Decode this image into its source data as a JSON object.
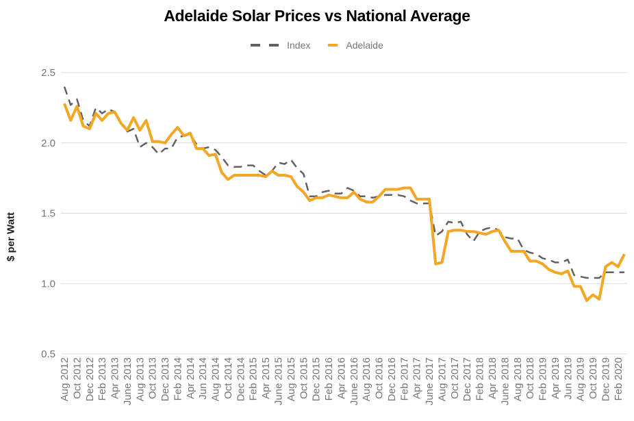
{
  "chart_data": {
    "type": "line",
    "title": "Adelaide Solar Prices vs National Average",
    "xlabel": "",
    "ylabel": "$ per Watt",
    "ylim": [
      0.5,
      2.5
    ],
    "yticks": [
      "0.5",
      "1.0",
      "1.5",
      "2.0",
      "2.5"
    ],
    "ytick_values": [
      0.5,
      1.0,
      1.5,
      2.0,
      2.5
    ],
    "grid": true,
    "legend_position": "top-center",
    "x_tick_labels": [
      "Aug 2012",
      "Oct 2012",
      "Dec 2012",
      "Feb 2013",
      "Apr 2013",
      "June 2013",
      "Aug 2013",
      "Oct 2013",
      "Dec 2013",
      "Feb 2014",
      "Apr 2014",
      "Jun 2014",
      "Aug 2014",
      "Oct 2014",
      "Dec 2014",
      "Feb 2015",
      "Apr 2015",
      "June 2015",
      "Aug 2015",
      "Oct 2015",
      "Dec 2015",
      "Feb 2016",
      "Apr 2016",
      "June 2016",
      "Aug 2016",
      "Oct 2016",
      "Dec 2016",
      "Feb 2017",
      "Apr 2017",
      "June 2017",
      "Aug 2017",
      "Oct 2017",
      "Dec 2017",
      "Feb 2018",
      "Apr 2018",
      "June 2018",
      "Aug 2018",
      "Oct 2018",
      "Feb 2019",
      "Apr 2019",
      "Jun 2019",
      "Aug 2019",
      "Oct 2019",
      "Dec 2019",
      "Feb 2020"
    ],
    "x_tick_every": 2,
    "series": [
      {
        "name": "Index",
        "color": "#616161",
        "style": "dashed",
        "values": [
          2.4,
          2.27,
          2.31,
          2.16,
          2.12,
          2.25,
          2.21,
          2.24,
          2.22,
          2.14,
          2.08,
          2.1,
          1.97,
          2.0,
          1.97,
          1.92,
          1.96,
          1.96,
          2.04,
          2.05,
          2.06,
          1.99,
          1.96,
          1.97,
          1.95,
          1.9,
          1.84,
          1.83,
          1.83,
          1.84,
          1.84,
          1.8,
          1.77,
          1.8,
          1.86,
          1.85,
          1.88,
          1.82,
          1.78,
          1.62,
          1.62,
          1.65,
          1.66,
          1.64,
          1.64,
          1.68,
          1.66,
          1.62,
          1.62,
          1.61,
          1.62,
          1.63,
          1.63,
          1.63,
          1.62,
          1.59,
          1.57,
          1.57,
          1.57,
          1.34,
          1.37,
          1.44,
          1.43,
          1.44,
          1.35,
          1.3,
          1.37,
          1.39,
          1.4,
          1.38,
          1.33,
          1.32,
          1.32,
          1.24,
          1.22,
          1.21,
          1.18,
          1.17,
          1.15,
          1.15,
          1.17,
          1.06,
          1.05,
          1.04,
          1.04,
          1.04,
          1.08,
          1.08,
          1.08,
          1.08
        ]
      },
      {
        "name": "Adelaide",
        "color": "#f5a623",
        "style": "solid",
        "values": [
          2.28,
          2.16,
          2.26,
          2.12,
          2.1,
          2.21,
          2.16,
          2.21,
          2.22,
          2.14,
          2.09,
          2.18,
          2.09,
          2.16,
          2.01,
          2.01,
          2.0,
          2.06,
          2.11,
          2.05,
          2.07,
          1.96,
          1.96,
          1.91,
          1.92,
          1.79,
          1.74,
          1.77,
          1.77,
          1.77,
          1.77,
          1.77,
          1.76,
          1.8,
          1.77,
          1.77,
          1.76,
          1.69,
          1.65,
          1.59,
          1.61,
          1.61,
          1.63,
          1.62,
          1.61,
          1.61,
          1.65,
          1.6,
          1.58,
          1.58,
          1.62,
          1.67,
          1.67,
          1.67,
          1.68,
          1.68,
          1.6,
          1.6,
          1.6,
          1.14,
          1.15,
          1.37,
          1.38,
          1.38,
          1.37,
          1.37,
          1.36,
          1.35,
          1.37,
          1.38,
          1.3,
          1.23,
          1.23,
          1.23,
          1.16,
          1.16,
          1.14,
          1.1,
          1.08,
          1.07,
          1.09,
          0.98,
          0.98,
          0.88,
          0.92,
          0.89,
          1.12,
          1.15,
          1.12,
          1.21
        ]
      }
    ]
  },
  "legend": {
    "items": [
      {
        "label": "Index",
        "color": "#616161"
      },
      {
        "label": "Adelaide",
        "color": "#f5a623"
      }
    ]
  }
}
